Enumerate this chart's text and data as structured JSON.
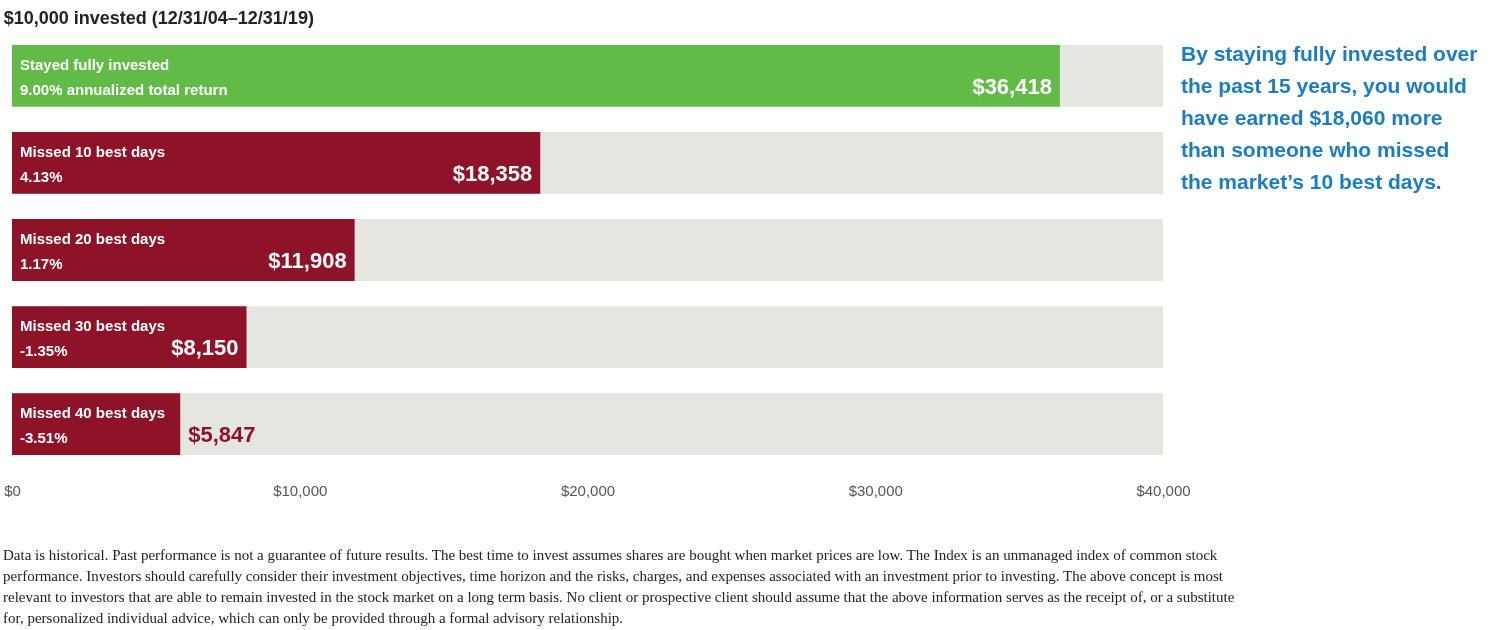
{
  "chart_data": {
    "type": "bar",
    "orientation": "horizontal",
    "title": "$10,000 invested (12/31/04–12/31/19)",
    "categories": [
      "Stayed fully invested\n9.00% annualized total return",
      "Missed 10 best days\n4.13%",
      "Missed 20 best days\n1.17%",
      "Missed 30 best days\n-1.35%",
      "Missed 40 best days\n-3.51%"
    ],
    "values": [
      36418,
      18358,
      11908,
      8150,
      5847
    ],
    "colors": [
      "#62bb47",
      "#8e1329",
      "#8e1329",
      "#8e1329",
      "#8e1329"
    ],
    "value_labels": [
      "$36,418",
      "$18,358",
      "$11,908",
      "$8,150",
      "$5,847"
    ],
    "xlim": [
      0,
      40000
    ],
    "xticks": [
      {
        "value": 0,
        "label": "$0"
      },
      {
        "value": 10000,
        "label": "$10,000"
      },
      {
        "value": 20000,
        "label": "$20,000"
      },
      {
        "value": 30000,
        "label": "$30,000"
      },
      {
        "value": 40000,
        "label": "$40,000"
      }
    ],
    "bands": [
      {
        "axis": "x",
        "from": 0,
        "to": 40000,
        "color": "#e6e6e1"
      }
    ],
    "annotations": [
      "By staying fully invested over the past 15 years, you would have earned $18,060 more than someone who missed the market’s 10 best days.",
      "Data is historical. Past performance is not a guarantee of future results. The best time to invest assumes shares are bought when market prices are low. The Index is an unmanaged index of common stock performance. Investors should carefully consider their investment objectives, time horizon and the risks, charges, and expenses associated with an investment prior to investing. The above concept is most relevant to investors that are able to remain invested in the stock market on a long term basis. No client or prospective client should assume that the above information serves as the receipt of, or a substitute for, personalized individual advice, which can only be provided through a formal advisory relationship."
    ]
  }
}
